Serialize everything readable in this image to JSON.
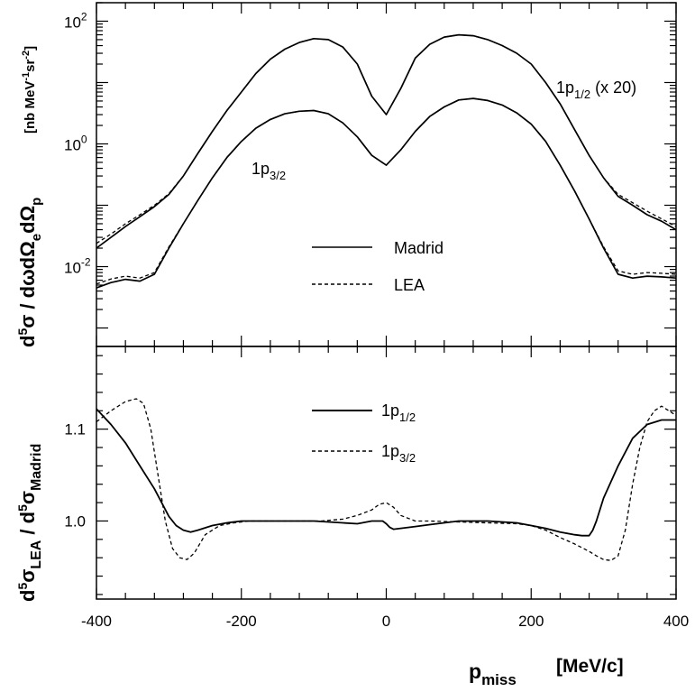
{
  "chart_data": [
    {
      "type": "line",
      "panel": "top",
      "yscale": "log",
      "ylim": [
        0.0005,
        200
      ],
      "xlim": [
        -400,
        400
      ],
      "ylabel": "d5σ / dωdΩedΩp",
      "yunit": "[nb MeV-1sr-2]",
      "ytick_values": [
        0.01,
        1,
        100
      ],
      "ytick_labels": [
        "10",
        "10",
        "10"
      ],
      "ytick_exponents": [
        "-2",
        "0",
        "2"
      ],
      "annotations": {
        "p12": {
          "main": "1p",
          "sub": "1/2",
          "suffix": " (x 20)"
        },
        "p32": {
          "main": "1p",
          "sub": "3/2"
        }
      },
      "legend": [
        {
          "name": "Madrid",
          "dash": "solid"
        },
        {
          "name": "LEA",
          "dash": "dashed"
        }
      ],
      "series": [
        {
          "name": "1p1/2 (x 20) Madrid",
          "dash": "solid",
          "x": [
            -400,
            -380,
            -360,
            -340,
            -320,
            -300,
            -280,
            -260,
            -240,
            -220,
            -200,
            -180,
            -160,
            -140,
            -120,
            -100,
            -80,
            -60,
            -40,
            -20,
            0,
            20,
            40,
            60,
            80,
            100,
            120,
            140,
            160,
            180,
            200,
            220,
            240,
            260,
            280,
            300,
            320,
            340,
            360,
            380,
            400
          ],
          "y": [
            0.02,
            0.03,
            0.045,
            0.065,
            0.095,
            0.15,
            0.3,
            0.7,
            1.6,
            3.5,
            7,
            14,
            24,
            35,
            45,
            52,
            50,
            38,
            20,
            6,
            3,
            8,
            25,
            42,
            55,
            60,
            58,
            50,
            40,
            30,
            20,
            10,
            4.5,
            1.7,
            0.65,
            0.28,
            0.14,
            0.1,
            0.07,
            0.055,
            0.04
          ]
        },
        {
          "name": "1p1/2 (x 20) LEA",
          "dash": "dashed",
          "x": [
            -400,
            -380,
            -360,
            -340,
            -320,
            -300,
            -280,
            -260,
            -240,
            -220,
            -200,
            -180,
            -160,
            -140,
            -120,
            -100,
            -80,
            -60,
            -40,
            -20,
            0,
            20,
            40,
            60,
            80,
            100,
            120,
            140,
            160,
            180,
            200,
            220,
            240,
            260,
            280,
            300,
            320,
            340,
            360,
            380,
            400
          ],
          "y": [
            0.024,
            0.034,
            0.05,
            0.07,
            0.1,
            0.155,
            0.3,
            0.7,
            1.6,
            3.5,
            7,
            14,
            24,
            35,
            45,
            52,
            50,
            38,
            20,
            6,
            3,
            8,
            25,
            42,
            55,
            60,
            58,
            50,
            40,
            30,
            20,
            10,
            4.5,
            1.7,
            0.65,
            0.28,
            0.15,
            0.11,
            0.08,
            0.06,
            0.045
          ]
        },
        {
          "name": "1p3/2 Madrid",
          "dash": "solid",
          "x": [
            -400,
            -380,
            -360,
            -340,
            -320,
            -300,
            -280,
            -260,
            -240,
            -220,
            -200,
            -180,
            -160,
            -140,
            -120,
            -100,
            -80,
            -60,
            -40,
            -20,
            0,
            20,
            40,
            60,
            80,
            100,
            120,
            140,
            160,
            180,
            200,
            220,
            240,
            260,
            280,
            300,
            320,
            340,
            360,
            380,
            400
          ],
          "y": [
            0.0045,
            0.0055,
            0.0062,
            0.0058,
            0.0075,
            0.02,
            0.05,
            0.12,
            0.28,
            0.6,
            1.1,
            1.8,
            2.5,
            3.1,
            3.4,
            3.5,
            3.1,
            2.2,
            1.3,
            0.65,
            0.45,
            0.8,
            1.6,
            2.8,
            4,
            5.2,
            5.5,
            5.1,
            4.3,
            3.2,
            2.1,
            1.1,
            0.45,
            0.17,
            0.06,
            0.02,
            0.0075,
            0.0065,
            0.007,
            0.0068,
            0.0065
          ]
        },
        {
          "name": "1p3/2 LEA",
          "dash": "dashed",
          "x": [
            -400,
            -380,
            -360,
            -340,
            -320,
            -300,
            -280,
            -260,
            -240,
            -220,
            -200,
            -180,
            -160,
            -140,
            -120,
            -100,
            -80,
            -60,
            -40,
            -20,
            0,
            20,
            40,
            60,
            80,
            100,
            120,
            140,
            160,
            180,
            200,
            220,
            240,
            260,
            280,
            300,
            320,
            340,
            360,
            380,
            400
          ],
          "y": [
            0.0052,
            0.0063,
            0.007,
            0.0065,
            0.008,
            0.021,
            0.05,
            0.12,
            0.28,
            0.6,
            1.1,
            1.8,
            2.5,
            3.1,
            3.4,
            3.5,
            3.1,
            2.2,
            1.3,
            0.65,
            0.45,
            0.8,
            1.6,
            2.8,
            4,
            5.2,
            5.5,
            5.1,
            4.3,
            3.2,
            2.1,
            1.1,
            0.45,
            0.17,
            0.06,
            0.021,
            0.0085,
            0.0075,
            0.008,
            0.0078,
            0.0075
          ]
        }
      ]
    },
    {
      "type": "line",
      "panel": "bottom",
      "yscale": "linear",
      "ylim": [
        0.915,
        1.19
      ],
      "xlim": [
        -400,
        400
      ],
      "xlabel": "pmiss",
      "xunit": "[MeV/c]",
      "ylabel": "d5σLEA / d5σMadrid",
      "xtick_labels": [
        "-400",
        "-200",
        "0",
        "200",
        "400"
      ],
      "ytick_labels": [
        "1.0",
        "1.1"
      ],
      "legend": [
        {
          "main": "1p",
          "sub": "1/2",
          "dash": "solid"
        },
        {
          "main": "1p",
          "sub": "3/2",
          "dash": "dashed"
        }
      ],
      "series": [
        {
          "name": "1p1/2",
          "dash": "solid",
          "x": [
            -400,
            -380,
            -360,
            -340,
            -320,
            -300,
            -290,
            -280,
            -270,
            -260,
            -240,
            -220,
            -200,
            -180,
            -160,
            -140,
            -120,
            -100,
            -80,
            -60,
            -40,
            -20,
            -5,
            0,
            5,
            10,
            20,
            40,
            60,
            80,
            100,
            120,
            140,
            160,
            180,
            200,
            220,
            240,
            260,
            270,
            280,
            285,
            290,
            300,
            320,
            340,
            360,
            380,
            400
          ],
          "y": [
            1.122,
            1.105,
            1.085,
            1.06,
            1.035,
            1.005,
            0.995,
            0.99,
            0.988,
            0.99,
            0.995,
            0.998,
            1.0,
            1.0,
            1.0,
            1.0,
            1.0,
            1.0,
            0.999,
            0.998,
            0.997,
            1.0,
            1.0,
            0.997,
            0.993,
            0.991,
            0.992,
            0.994,
            0.996,
            0.998,
            1.0,
            1.0,
            1.0,
            0.999,
            0.998,
            0.995,
            0.992,
            0.988,
            0.985,
            0.984,
            0.984,
            0.99,
            1.0,
            1.025,
            1.06,
            1.09,
            1.105,
            1.11,
            1.11
          ]
        },
        {
          "name": "1p3/2",
          "dash": "dashed",
          "x": [
            -400,
            -380,
            -360,
            -345,
            -335,
            -325,
            -315,
            -305,
            -295,
            -285,
            -275,
            -265,
            -250,
            -230,
            -210,
            -190,
            -170,
            -150,
            -120,
            -90,
            -60,
            -40,
            -20,
            -10,
            0,
            10,
            20,
            40,
            60,
            100,
            140,
            180,
            200,
            220,
            240,
            260,
            280,
            290,
            300,
            310,
            320,
            330,
            340,
            350,
            360,
            370,
            380,
            390,
            400
          ],
          "y": [
            1.108,
            1.12,
            1.13,
            1.133,
            1.128,
            1.1,
            1.05,
            1.0,
            0.97,
            0.96,
            0.958,
            0.965,
            0.985,
            0.995,
            0.998,
            1.0,
            1.0,
            1.0,
            1.0,
            1.0,
            1.002,
            1.006,
            1.012,
            1.018,
            1.02,
            1.015,
            1.006,
            1.0,
            1.0,
            0.999,
            0.998,
            0.997,
            0.995,
            0.99,
            0.982,
            0.975,
            0.967,
            0.962,
            0.958,
            0.957,
            0.962,
            0.99,
            1.04,
            1.08,
            1.108,
            1.12,
            1.125,
            1.12,
            1.115
          ]
        }
      ]
    }
  ]
}
